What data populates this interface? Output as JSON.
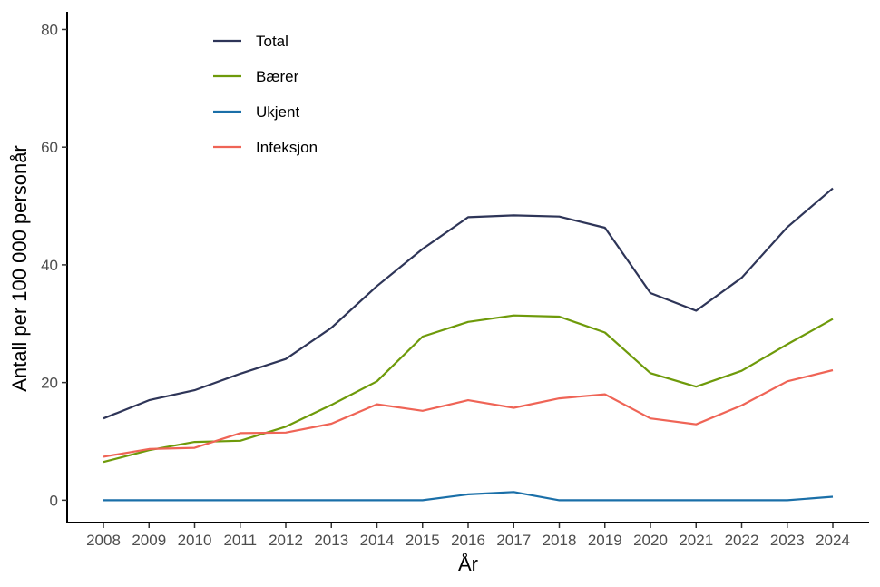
{
  "chart_data": {
    "type": "line",
    "xlabel": "År",
    "ylabel": "Antall per 100 000 personår",
    "ylim": [
      -3.8,
      83
    ],
    "yticks": [
      0,
      20,
      40,
      60,
      80
    ],
    "categories": [
      "2008",
      "2009",
      "2010",
      "2011",
      "2012",
      "2013",
      "2014",
      "2015",
      "2016",
      "2017",
      "2018",
      "2019",
      "2020",
      "2021",
      "2022",
      "2023",
      "2024"
    ],
    "grid": false,
    "legend_position": "top-left",
    "series": [
      {
        "name": "Total",
        "color": "#2e3558",
        "values": [
          13.9,
          17.0,
          18.7,
          21.5,
          24.0,
          29.3,
          36.4,
          42.7,
          48.1,
          48.4,
          48.2,
          46.3,
          35.2,
          32.2,
          37.8,
          46.4,
          53.0
        ]
      },
      {
        "name": "Bærer",
        "color": "#6e9a0a",
        "values": [
          6.5,
          8.5,
          9.9,
          10.1,
          12.5,
          16.2,
          20.2,
          27.8,
          30.3,
          31.4,
          31.2,
          28.5,
          21.6,
          19.3,
          22.0,
          26.5,
          30.8
        ]
      },
      {
        "name": "Ukjent",
        "color": "#1a6fa8",
        "values": [
          0.0,
          0.0,
          0.0,
          0.0,
          0.0,
          0.0,
          0.0,
          0.0,
          1.0,
          1.4,
          0.0,
          0.0,
          0.0,
          0.0,
          0.0,
          0.0,
          0.6
        ]
      },
      {
        "name": "Infeksjon",
        "color": "#ef6456",
        "values": [
          7.4,
          8.7,
          8.9,
          11.4,
          11.5,
          13.0,
          16.3,
          15.2,
          17.0,
          15.7,
          17.3,
          18.0,
          13.9,
          12.9,
          16.1,
          20.2,
          22.1
        ]
      }
    ]
  }
}
